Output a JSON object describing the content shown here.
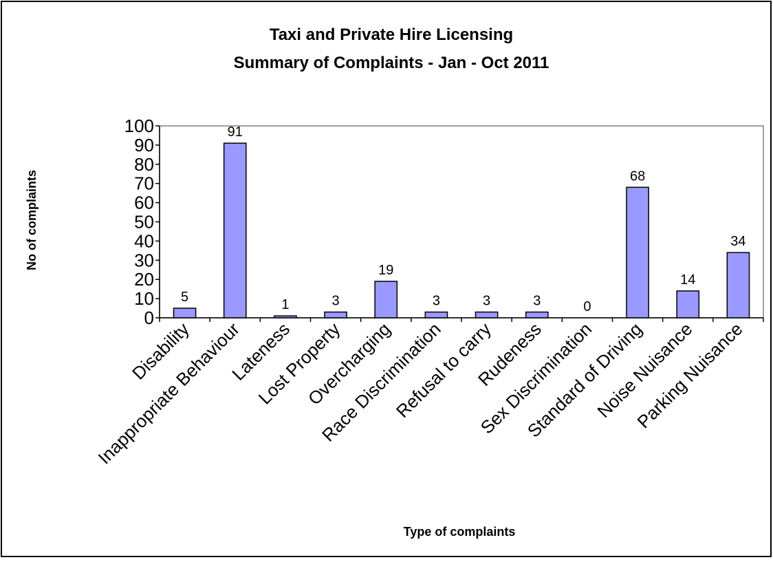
{
  "chart_data": {
    "type": "bar",
    "title": "Taxi and Private Hire Licensing",
    "subtitle": "Summary of Complaints - Jan - Oct 2011",
    "xlabel": "Type of complaints",
    "ylabel": "No of complaints",
    "categories": [
      "Disability",
      "Inappropriate Behaviour",
      "Lateness",
      "Lost Property",
      "Overcharging",
      "Race Discrimination",
      "Refusal to carry",
      "Rudeness",
      "Sex Discrimination",
      "Standard of Driving",
      "Noise Nuisance",
      "Parking Nuisance"
    ],
    "values": [
      5,
      91,
      1,
      3,
      19,
      3,
      3,
      3,
      0,
      68,
      14,
      34
    ],
    "ylim": [
      0,
      100
    ],
    "yticks": [
      0,
      10,
      20,
      30,
      40,
      50,
      60,
      70,
      80,
      90,
      100
    ],
    "bar_color": "#9999ff",
    "grid": false,
    "legend": "none"
  }
}
